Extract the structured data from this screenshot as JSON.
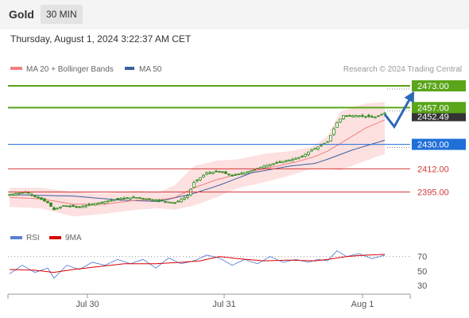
{
  "header": {
    "symbol": "Gold",
    "timeframe": "30 MIN",
    "datetime": "Thursday, August 1, 2024 3:22:37 AM CET"
  },
  "legend": {
    "ma20_bb": "MA 20 + Bollinger Bands",
    "ma50": "MA 50",
    "credit": "Research © 2024 Trading Central",
    "rsi": "RSI",
    "rsi_ma": "9MA"
  },
  "colors": {
    "candle": "#2f8a1f",
    "ma20": "#f08080",
    "ma50": "#3d5f9e",
    "bands_fill": "#fde0e0",
    "target": "#5aa51a",
    "pivot": "#1f6fd8",
    "support": "#d43a3a",
    "arrow": "#2d68b8",
    "rsi": "#5b7fd6",
    "rsi_ma": "#d90000",
    "current_price_box": "#333333"
  },
  "chart_data": [
    {
      "type": "candlestick",
      "x_labels": [
        "Jul 30",
        "Jul 31",
        "Aug 1"
      ],
      "y_range": [
        2376,
        2480
      ],
      "current_price_label": "2452.49",
      "levels": [
        {
          "value": 2473.0,
          "label": "2473.00",
          "kind": "target"
        },
        {
          "value": 2457.0,
          "label": "2457.00",
          "kind": "target"
        },
        {
          "value": 2430.0,
          "label": "2430.00",
          "kind": "pivot"
        },
        {
          "value": 2412.0,
          "label": "2412.00",
          "kind": "support"
        },
        {
          "value": 2395.0,
          "label": "2395.00",
          "kind": "support"
        }
      ],
      "close_path": [
        [
          0,
          2393
        ],
        [
          5,
          2395
        ],
        [
          8,
          2392
        ],
        [
          12,
          2387
        ],
        [
          14,
          2382
        ],
        [
          17,
          2385
        ],
        [
          22,
          2384
        ],
        [
          28,
          2387
        ],
        [
          34,
          2390
        ],
        [
          40,
          2391
        ],
        [
          46,
          2389
        ],
        [
          52,
          2387
        ],
        [
          56,
          2392
        ],
        [
          58,
          2402
        ],
        [
          62,
          2409
        ],
        [
          66,
          2410
        ],
        [
          70,
          2407
        ],
        [
          75,
          2410
        ],
        [
          80,
          2414
        ],
        [
          85,
          2417
        ],
        [
          89,
          2419
        ],
        [
          92,
          2421
        ],
        [
          95,
          2426
        ],
        [
          97,
          2428
        ],
        [
          100,
          2432
        ],
        [
          103,
          2446
        ],
        [
          105,
          2451
        ],
        [
          110,
          2451
        ],
        [
          115,
          2450
        ],
        [
          118,
          2453
        ]
      ],
      "ma20_path": [
        [
          0,
          2391
        ],
        [
          10,
          2390
        ],
        [
          20,
          2386
        ],
        [
          30,
          2386
        ],
        [
          40,
          2389
        ],
        [
          47,
          2389
        ],
        [
          52,
          2391
        ],
        [
          58,
          2398
        ],
        [
          65,
          2404
        ],
        [
          72,
          2408
        ],
        [
          80,
          2412
        ],
        [
          90,
          2417
        ],
        [
          96,
          2421
        ],
        [
          100,
          2425
        ],
        [
          105,
          2432
        ],
        [
          112,
          2442
        ],
        [
          118,
          2448
        ]
      ],
      "ma50_path": [
        [
          0,
          2393
        ],
        [
          20,
          2392
        ],
        [
          35,
          2389
        ],
        [
          47,
          2388
        ],
        [
          58,
          2394
        ],
        [
          66,
          2400
        ],
        [
          76,
          2409
        ],
        [
          88,
          2414
        ],
        [
          96,
          2416
        ],
        [
          100,
          2419
        ],
        [
          108,
          2426
        ],
        [
          118,
          2433
        ]
      ],
      "bb_upper_path": [
        [
          0,
          2398
        ],
        [
          10,
          2398
        ],
        [
          20,
          2395
        ],
        [
          30,
          2394
        ],
        [
          40,
          2396
        ],
        [
          47,
          2395
        ],
        [
          52,
          2400
        ],
        [
          58,
          2414
        ],
        [
          65,
          2418
        ],
        [
          72,
          2419
        ],
        [
          80,
          2423
        ],
        [
          88,
          2425
        ],
        [
          95,
          2428
        ],
        [
          100,
          2436
        ],
        [
          104,
          2454
        ],
        [
          112,
          2460
        ],
        [
          118,
          2461
        ]
      ],
      "bb_lower_path": [
        [
          0,
          2384
        ],
        [
          10,
          2383
        ],
        [
          20,
          2377
        ],
        [
          30,
          2379
        ],
        [
          40,
          2382
        ],
        [
          47,
          2383
        ],
        [
          52,
          2382
        ],
        [
          58,
          2385
        ],
        [
          65,
          2391
        ],
        [
          72,
          2398
        ],
        [
          80,
          2402
        ],
        [
          88,
          2407
        ],
        [
          95,
          2412
        ],
        [
          100,
          2412
        ],
        [
          104,
          2411
        ],
        [
          112,
          2418
        ],
        [
          118,
          2423
        ]
      ],
      "arrow_path": [
        [
          118,
          2452
        ],
        [
          121,
          2443
        ],
        [
          127,
          2468
        ]
      ]
    },
    {
      "type": "line",
      "name": "RSI",
      "y_ticks": [
        70,
        50,
        30
      ],
      "y_range": [
        20,
        84
      ],
      "rsi_path": [
        [
          0,
          46
        ],
        [
          4,
          58
        ],
        [
          8,
          48
        ],
        [
          12,
          54
        ],
        [
          14,
          40
        ],
        [
          18,
          58
        ],
        [
          22,
          52
        ],
        [
          26,
          62
        ],
        [
          30,
          58
        ],
        [
          34,
          66
        ],
        [
          38,
          60
        ],
        [
          42,
          66
        ],
        [
          46,
          54
        ],
        [
          50,
          68
        ],
        [
          54,
          60
        ],
        [
          58,
          64
        ],
        [
          62,
          72
        ],
        [
          66,
          68
        ],
        [
          70,
          58
        ],
        [
          74,
          66
        ],
        [
          78,
          60
        ],
        [
          82,
          70
        ],
        [
          86,
          62
        ],
        [
          90,
          66
        ],
        [
          94,
          62
        ],
        [
          97,
          66
        ],
        [
          100,
          64
        ],
        [
          103,
          78
        ],
        [
          106,
          70
        ],
        [
          110,
          74
        ],
        [
          114,
          67
        ],
        [
          118,
          72
        ]
      ],
      "rsi_ma_path": [
        [
          0,
          52
        ],
        [
          8,
          51
        ],
        [
          14,
          48
        ],
        [
          20,
          52
        ],
        [
          28,
          56
        ],
        [
          36,
          60
        ],
        [
          46,
          60
        ],
        [
          54,
          62
        ],
        [
          60,
          64
        ],
        [
          66,
          70
        ],
        [
          72,
          67
        ],
        [
          80,
          64
        ],
        [
          88,
          65
        ],
        [
          96,
          64
        ],
        [
          100,
          66
        ],
        [
          106,
          70
        ],
        [
          112,
          72
        ],
        [
          118,
          73
        ]
      ]
    }
  ]
}
